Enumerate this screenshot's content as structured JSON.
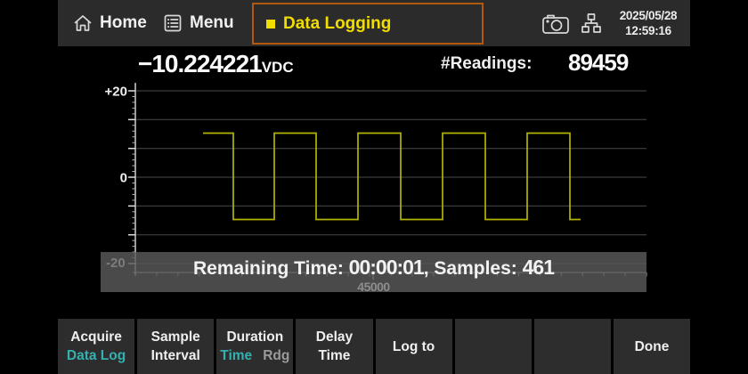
{
  "statusbar": {
    "home_label": "Home",
    "menu_label": "Menu",
    "active_tab": "Data Logging",
    "date": "2025/05/28",
    "time": "12:59:16",
    "icons": [
      "house-icon",
      "list-icon",
      "square-bullet-icon",
      "camera-icon",
      "lan-network-icon"
    ]
  },
  "reading": {
    "value": "−10.224221",
    "unit": "VDC",
    "readings_label": "#Readings:",
    "readings_count": "89459"
  },
  "chart_data": {
    "type": "line",
    "title": "",
    "xlabel": "",
    "ylabel": "",
    "ylim": [
      -20,
      20
    ],
    "grid": true,
    "gridline_values": [
      20,
      13.33,
      6.67,
      0,
      -6.67,
      -13.33,
      -20
    ],
    "y_ticks": [
      {
        "label": "+20",
        "value": 20
      },
      {
        "label": "0",
        "value": 0
      },
      {
        "label": "-20",
        "value": -20
      }
    ],
    "x_tick_label": "45000",
    "series": [
      {
        "name": "dc-voltage-trend",
        "color": "#b3b300",
        "high_level_v": 10.2,
        "low_level_v": -9.8,
        "points": [
          [
            0.1324,
            10.2
          ],
          [
            0.1916,
            10.2
          ],
          [
            0.1916,
            -9.8
          ],
          [
            0.2718,
            -9.8
          ],
          [
            0.2718,
            10.2
          ],
          [
            0.3537,
            10.2
          ],
          [
            0.3537,
            -9.8
          ],
          [
            0.4355,
            -9.8
          ],
          [
            0.4355,
            10.2
          ],
          [
            0.5192,
            10.2
          ],
          [
            0.5192,
            -9.8
          ],
          [
            0.601,
            -9.8
          ],
          [
            0.601,
            10.2
          ],
          [
            0.6847,
            10.2
          ],
          [
            0.6847,
            -9.8
          ],
          [
            0.7666,
            -9.8
          ],
          [
            0.7666,
            10.2
          ],
          [
            0.8502,
            10.2
          ],
          [
            0.8502,
            -9.8
          ],
          [
            0.8711,
            -9.8
          ]
        ]
      }
    ]
  },
  "overlay": {
    "remaining_label": "Remaining Time: ",
    "remaining_time": "00:00:01",
    "samples_label": ", Samples: ",
    "samples_value": "461"
  },
  "softkeys": [
    {
      "line1": "Acquire",
      "line2": "Data Log"
    },
    {
      "line1": "Sample",
      "line2": "Interval"
    },
    {
      "line1": "Duration",
      "line2_primary": "Time",
      "line2_secondary": "Rdg"
    },
    {
      "line1": "Delay",
      "line2": "Time"
    },
    {
      "line1": "Log to"
    },
    {},
    {},
    {
      "line1": "Done"
    }
  ],
  "colors": {
    "accent_yellow": "#f2dd00",
    "tab_border": "#b2590f",
    "teal": "#35b0b0",
    "trace_yellow": "#b3b300",
    "bar_background": "#2b2b2b",
    "softkey_background": "#2d2d2d",
    "overlay_background": "#4e4e4e"
  }
}
